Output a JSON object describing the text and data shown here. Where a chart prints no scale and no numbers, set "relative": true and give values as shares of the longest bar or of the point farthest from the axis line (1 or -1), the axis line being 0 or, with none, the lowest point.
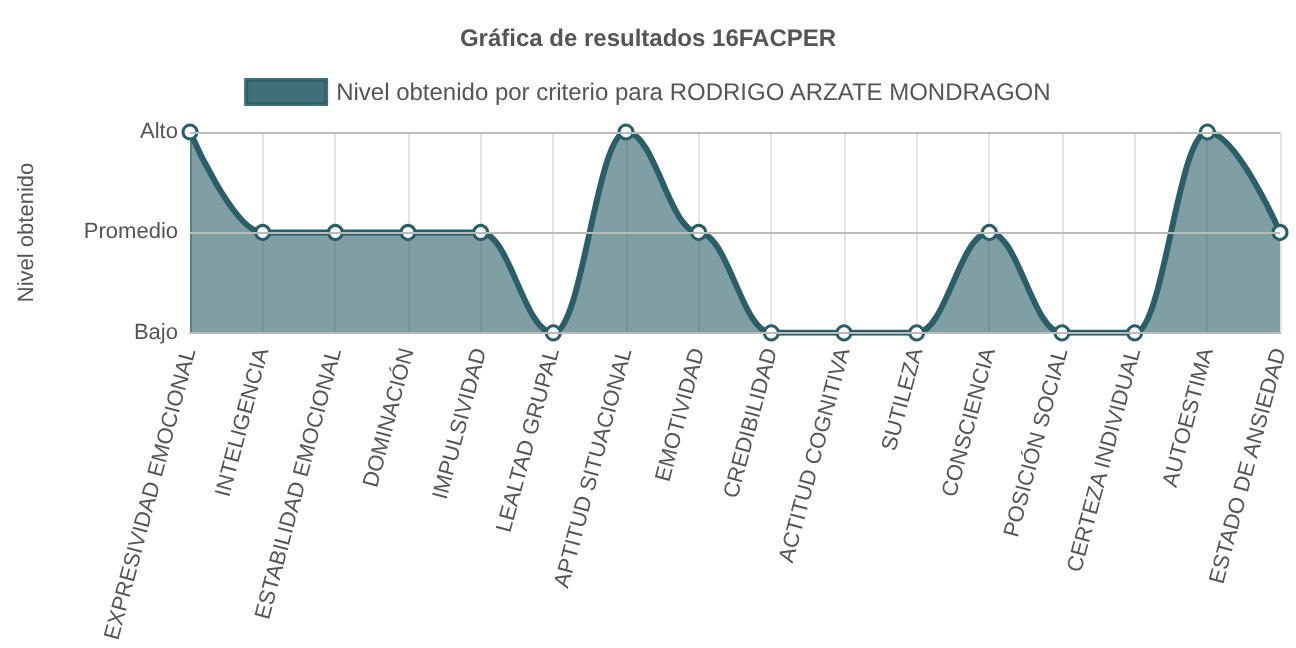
{
  "chart_data": {
    "type": "area",
    "title": "Gráfica de resultados 16FACPER",
    "ylabel": "Nivel obtenido",
    "relative": true,
    "categories": [
      "EXPRESIVIDAD EMOCIONAL",
      "INTELIGENCIA",
      "ESTABILIDAD EMOCIONAL",
      "DOMINACIÓN",
      "IMPULSIVIDAD",
      "LEALTAD GRUPAL",
      "APTITUD SITUACIONAL",
      "EMOTIVIDAD",
      "CREDIBILIDAD",
      "ACTITUD COGNITIVA",
      "SUTILEZA",
      "CONSCIENCIA",
      "POSICIÓN SOCIAL",
      "CERTEZA INDIVIDUAL",
      "AUTOESTIMA",
      "ESTADO DE ANSIEDAD"
    ],
    "series": [
      {
        "name": "Nivel obtenido por criterio para RODRIGO ARZATE MONDRAGON",
        "color": "#2b5f68",
        "values": [
          1,
          0.5,
          0.5,
          0.5,
          0.5,
          0,
          1,
          0.5,
          0,
          0,
          0,
          0.5,
          0,
          0,
          1,
          0.5
        ]
      }
    ],
    "ref_lines": [
      {
        "axis": "y",
        "value": 0,
        "label": "Bajo"
      },
      {
        "axis": "y",
        "value": 0.5,
        "label": "Promedio"
      },
      {
        "axis": "y",
        "value": 1,
        "label": "Alto"
      }
    ],
    "grid": "x",
    "legend": "top",
    "marker": "circle",
    "line_style": "solid"
  }
}
